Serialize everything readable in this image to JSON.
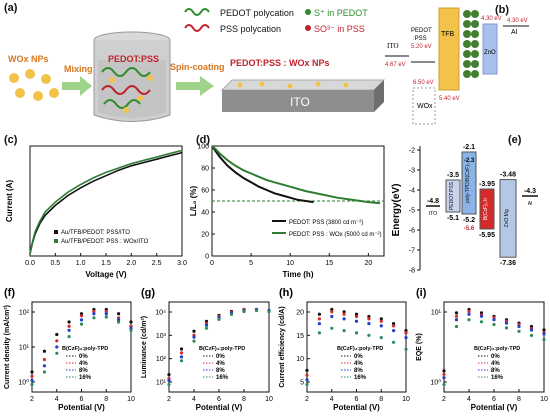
{
  "panel_a": {
    "label": "(a)",
    "legend": {
      "pedot": "PEDOT polycation",
      "pss": "PSS polycation",
      "s_plus": "S⁺ in PEDOT",
      "so3": "SO³⁻ in PSS"
    },
    "wox_nps": "WOx NPs",
    "mixing": "Mixing",
    "pedot_pss": "PEDOT:PSS",
    "spin": "Spin-coating",
    "pedot_pss_wox": "PEDOT:PSS : WOx NPs",
    "ito": "ITO"
  },
  "panel_b": {
    "label": "(b)",
    "ito": "ITO",
    "ito_ev": "4.67 eV",
    "pedot_line1": "PEDOT",
    "pedot_line2": ":PSS",
    "pedot_ev": "5.20 eV",
    "tfb": "TFB",
    "tfb_ev": "5.40 eV",
    "zno": "ZnO",
    "zno_ev": "4.30 eV",
    "al": "Al",
    "al_ev": "4.30 eV",
    "wox": "WOx",
    "wox_ev": "6.50 eV"
  },
  "panel_c": {
    "label": "(c)",
    "chart_data": {
      "type": "line",
      "xlabel": "Voltage (V)",
      "ylabel": "Current (A)",
      "xlim": [
        0.0,
        3.0
      ],
      "xticks": [
        "0.0",
        "0.5",
        "1.0",
        "1.5",
        "2.0",
        "2.5",
        "3.0"
      ],
      "series": [
        {
          "name": "Au/TFB/PEDOT: PSS/ITO",
          "color": "#111111",
          "x": [
            0,
            0.05,
            0.1,
            0.2,
            0.3,
            0.5,
            0.75,
            1.0,
            1.25,
            1.5,
            1.75,
            2.0,
            2.25,
            2.5,
            2.75,
            3.0
          ],
          "y": [
            0.02,
            0.12,
            0.2,
            0.3,
            0.37,
            0.46,
            0.55,
            0.62,
            0.68,
            0.73,
            0.78,
            0.82,
            0.85,
            0.88,
            0.91,
            0.94
          ]
        },
        {
          "name": "Au/TFB/PEDOT: PSS : WOx/ITO",
          "color": "#2e7d32",
          "x": [
            0,
            0.05,
            0.1,
            0.2,
            0.3,
            0.5,
            0.75,
            1.0,
            1.25,
            1.5,
            1.75,
            2.0,
            2.25,
            2.5,
            2.75,
            3.0
          ],
          "y": [
            0.02,
            0.13,
            0.22,
            0.32,
            0.4,
            0.49,
            0.58,
            0.65,
            0.71,
            0.76,
            0.8,
            0.84,
            0.87,
            0.9,
            0.93,
            0.96
          ]
        }
      ]
    }
  },
  "panel_d": {
    "label": "(d)",
    "chart_data": {
      "type": "line",
      "xlabel": "Time (h)",
      "ylabel": "L/L₀ (%)",
      "xlim": [
        0,
        22
      ],
      "ylim": [
        0,
        100
      ],
      "xticks": [
        "0",
        "5",
        "10",
        "15",
        "20"
      ],
      "yticks": [
        "0",
        "20",
        "40",
        "60",
        "80",
        "100"
      ],
      "reference_line": 50,
      "series": [
        {
          "name": "PEDOT: PSS (3800 cd m⁻²)",
          "color": "#111111",
          "x": [
            0,
            0.5,
            1,
            2,
            3,
            4,
            5,
            6,
            7,
            8,
            9,
            10,
            11,
            12,
            13
          ],
          "y": [
            100,
            95,
            90,
            82,
            76,
            71,
            67,
            63,
            60,
            57,
            55,
            53,
            51,
            50,
            49
          ]
        },
        {
          "name": "PEDOT: PSS : WOx (5000 cd m⁻²)",
          "color": "#2e7d32",
          "x": [
            0,
            0.5,
            1,
            2,
            3,
            4,
            5,
            6,
            7,
            8,
            10,
            12,
            14,
            16,
            18,
            20,
            21.5
          ],
          "y": [
            100,
            97,
            93,
            87,
            82,
            78,
            75,
            72,
            69,
            67,
            63,
            59,
            56,
            53,
            51,
            49,
            48
          ]
        }
      ]
    }
  },
  "panel_e": {
    "label": "(e)",
    "ylabel": "Energy(eV)",
    "yticks": [
      "-2",
      "-3",
      "-4",
      "-5",
      "-6",
      "-7",
      "-8"
    ],
    "layers": [
      {
        "name": "ITO",
        "top": "-4.8",
        "color": "#ffffff"
      },
      {
        "name": "PEDOT:PSS",
        "top": "-3.5",
        "bottom": "-5.1",
        "color": "#c8d4ee"
      },
      {
        "name": "poly-TPD/B(CzF)₃",
        "top": "-2.1",
        "top2": "-2.3",
        "bottom": "-5.2",
        "bottom2": "-5.6",
        "color": "#8ab4e8"
      },
      {
        "name": "B(CzF)₃:Ir",
        "top": "-3.95",
        "bottom": "-5.95",
        "color": "#d62a2a"
      },
      {
        "name": "ZnO:Mg",
        "top": "-3.48",
        "bottom": "-7.36",
        "color": "#b4c8e6"
      },
      {
        "name": "Al",
        "top": "-4.3",
        "color": "#ffffff"
      }
    ]
  },
  "bottom_charts": [
    {
      "label": "(f)",
      "ylabel": "Current density (mA/cm²)",
      "xlabel": "Potential (V)",
      "xticks": [
        "2",
        "4",
        "6",
        "8",
        "10"
      ],
      "yticks": [
        "10²",
        "10¹",
        "10⁰"
      ],
      "legend_title": "B(CzF)₃:poly-TPD",
      "chart_data": {
        "type": "scatter",
        "x": [
          2,
          3,
          4,
          5,
          6,
          7,
          8,
          9,
          10
        ],
        "series": [
          {
            "name": "0%",
            "color": "#111111",
            "values": [
              0.4,
              0.9,
              1.3,
              1.6,
              1.8,
              1.9,
              1.9,
              1.8,
              1.6
            ]
          },
          {
            "name": "4%",
            "color": "#d62a2a",
            "values": [
              0.3,
              0.7,
              1.15,
              1.5,
              1.75,
              1.85,
              1.85,
              1.7,
              1.5
            ]
          },
          {
            "name": "8%",
            "color": "#1f3fcf",
            "values": [
              0.2,
              0.55,
              1.0,
              1.4,
              1.65,
              1.8,
              1.8,
              1.65,
              1.45
            ]
          },
          {
            "name": "16%",
            "color": "#2e8b57",
            "values": [
              0.1,
              0.4,
              0.85,
              1.25,
              1.55,
              1.7,
              1.72,
              1.6,
              1.4
            ]
          }
        ]
      }
    },
    {
      "label": "(g)",
      "ylabel": "Luminance (cd/m²)",
      "xlabel": "Potential (V)",
      "xticks": [
        "2",
        "4",
        "6",
        "8",
        "10"
      ],
      "yticks": [
        "10⁴",
        "10³",
        "10²",
        "10¹"
      ],
      "legend_title": "B(CzF)₃:poly-TPD",
      "chart_data": {
        "type": "scatter",
        "x": [
          2,
          3,
          4,
          5,
          6,
          7,
          8,
          9,
          10
        ],
        "series": [
          {
            "name": "0%",
            "color": "#111111",
            "values": [
              1.0,
              2.3,
              3.2,
              3.7,
              4.0,
              4.2,
              4.3,
              4.3,
              4.2
            ]
          },
          {
            "name": "4%",
            "color": "#d62a2a",
            "values": [
              0.8,
              2.1,
              3.0,
              3.6,
              3.95,
              4.15,
              4.3,
              4.3,
              4.25
            ]
          },
          {
            "name": "8%",
            "color": "#1f3fcf",
            "values": [
              0.7,
              1.9,
              2.9,
              3.5,
              3.9,
              4.1,
              4.25,
              4.3,
              4.25
            ]
          },
          {
            "name": "16%",
            "color": "#2e8b57",
            "values": [
              0.5,
              1.7,
              2.7,
              3.35,
              3.8,
              4.05,
              4.2,
              4.25,
              4.2
            ]
          }
        ]
      }
    },
    {
      "label": "(h)",
      "ylabel": "Current efficiency (cd/A)",
      "xlabel": "Potential (V)",
      "xticks": [
        "2",
        "4",
        "6",
        "8",
        "10"
      ],
      "yticks": [
        "20",
        "15",
        "10",
        "5"
      ],
      "legend_title": "B(CzF)₃:poly-TPD",
      "chart_data": {
        "type": "scatter",
        "x": [
          2,
          3,
          4,
          5,
          6,
          7,
          8,
          9,
          10
        ],
        "series": [
          {
            "name": "0%",
            "color": "#111111",
            "values": [
              5,
              17,
              18,
              17.5,
              17,
              16.5,
              16,
              15,
              13.5
            ]
          },
          {
            "name": "4%",
            "color": "#d62a2a",
            "values": [
              4,
              16,
              17.5,
              17,
              16.5,
              16,
              15.5,
              14.5,
              13
            ]
          },
          {
            "name": "8%",
            "color": "#1f3fcf",
            "values": [
              3,
              15,
              16.5,
              16,
              15.5,
              15,
              14.5,
              13.5,
              12
            ]
          },
          {
            "name": "16%",
            "color": "#2e8b57",
            "values": [
              2,
              13,
              14,
              13.5,
              13,
              12.5,
              12,
              11,
              9.5
            ]
          }
        ]
      }
    },
    {
      "label": "(i)",
      "ylabel": "EQE (%)",
      "xlabel": "Potential (V)",
      "xticks": [
        "2",
        "4",
        "6",
        "8",
        "10"
      ],
      "yticks": [
        "10¹",
        "10⁰"
      ],
      "legend_title": "B(CzF)₃:poly-TPD",
      "chart_data": {
        "type": "scatter",
        "x": [
          2,
          3,
          4,
          5,
          6,
          7,
          8,
          9,
          10
        ],
        "series": [
          {
            "name": "0%",
            "color": "#111111",
            "values": [
              0.3,
              1.15,
              1.2,
              1.15,
              1.1,
              1.05,
              1.0,
              0.95,
              0.9
            ]
          },
          {
            "name": "4%",
            "color": "#d62a2a",
            "values": [
              0.25,
              1.1,
              1.17,
              1.12,
              1.08,
              1.03,
              0.98,
              0.92,
              0.86
            ]
          },
          {
            "name": "8%",
            "color": "#1f3fcf",
            "values": [
              0.2,
              1.05,
              1.13,
              1.1,
              1.05,
              1.0,
              0.95,
              0.9,
              0.84
            ]
          },
          {
            "name": "16%",
            "color": "#2e8b57",
            "values": [
              0.1,
              0.95,
              1.05,
              1.02,
              0.98,
              0.93,
              0.88,
              0.82,
              0.76
            ]
          }
        ]
      }
    }
  ]
}
